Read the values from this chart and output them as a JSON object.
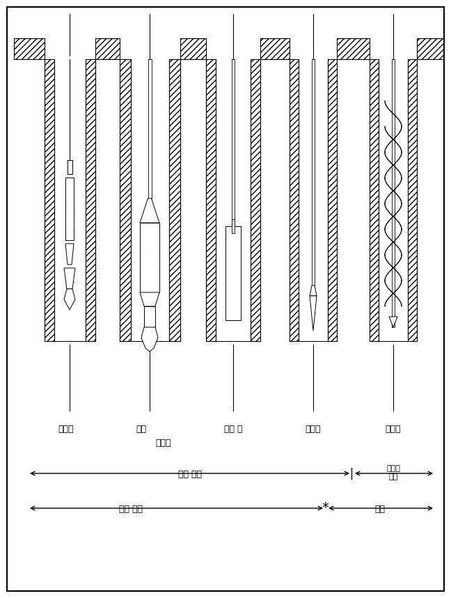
{
  "background_color": "#ffffff",
  "border_color": "#000000",
  "fig_width": 6.48,
  "fig_height": 8.59,
  "labels": {
    "cable": "케이블",
    "standard": "표준",
    "rotary": "회전식",
    "slurry": "슬림 홀",
    "hydraulic": "유압식",
    "auger": "오거식"
  },
  "bottom_labels": {
    "fluid_cleaning": "유체 청소",
    "mechanical_cleaning": "기계적\n청소",
    "rock_breaking": "암석 분쇄",
    "drilling": "굴진"
  },
  "line_color": "#000000",
  "text_color": "#000000",
  "fontsize": 9,
  "fontsize_small": 8
}
